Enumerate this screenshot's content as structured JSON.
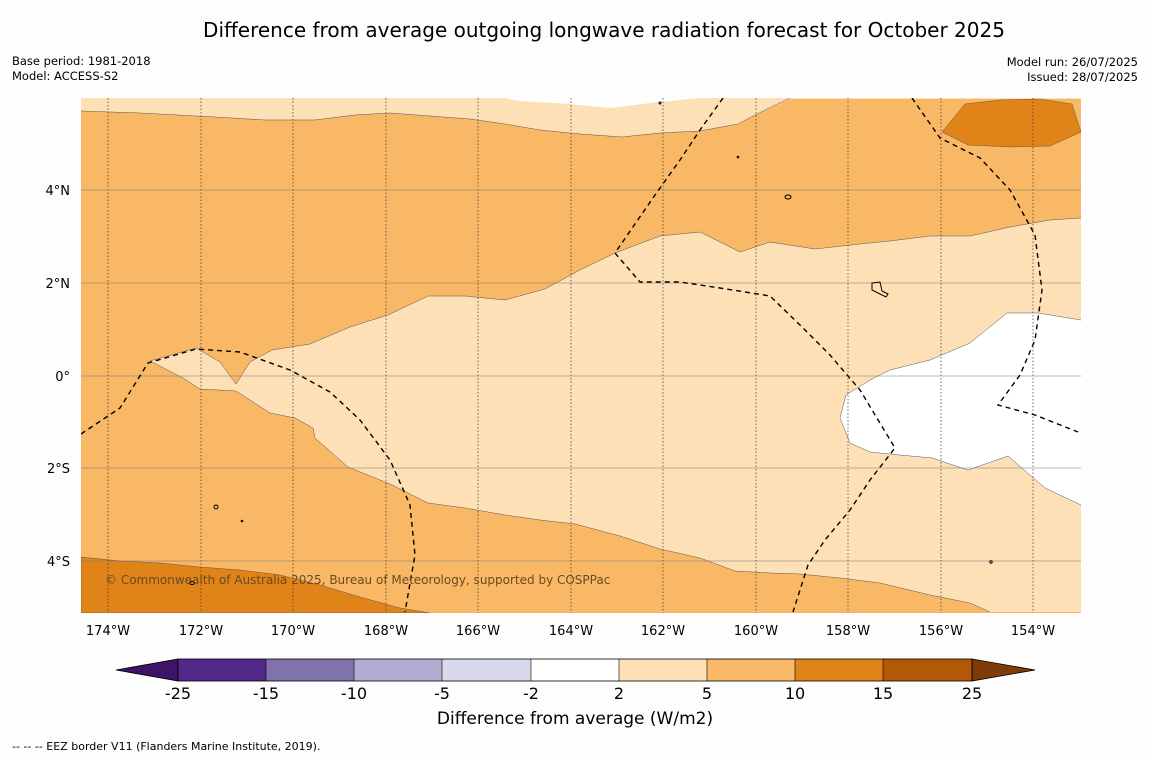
{
  "title": "Difference from average outgoing longwave radiation forecast for October 2025",
  "meta": {
    "base_period": "Base period: 1981-2018",
    "model": "Model: ACCESS-S2",
    "model_run": "Model run: 26/07/2025",
    "issued": "Issued: 28/07/2025"
  },
  "map": {
    "lon_labels": [
      "174°W",
      "172°W",
      "170°W",
      "168°W",
      "166°W",
      "164°W",
      "162°W",
      "160°W",
      "158°W",
      "156°W",
      "154°W"
    ],
    "lat_labels": [
      "4°N",
      "2°N",
      "0°",
      "2°S",
      "4°S"
    ],
    "copyright": "© Commonwealth of Australia 2025, Bureau of Meteorology, supported by COSPPac",
    "colors": {
      "c2_5": "#fde0b6",
      "c5_10": "#f9b865",
      "c10_15": "#e08419",
      "neutral": "#ffffff"
    }
  },
  "colorbar": {
    "ticks": [
      "-25",
      "-15",
      "-10",
      "-5",
      "-2",
      "2",
      "5",
      "10",
      "15",
      "25"
    ],
    "colors": [
      "#3d1466",
      "#52288a",
      "#8073ac",
      "#b2abd2",
      "#d8daeb",
      "#ffffff",
      "#fde0b6",
      "#f9b865",
      "#e08419",
      "#b35806",
      "#7f3b08"
    ],
    "label": "Difference from average (W/m2)"
  },
  "footer": "--  --  -- EEZ border V11 (Flanders Marine Institute, 2019)."
}
